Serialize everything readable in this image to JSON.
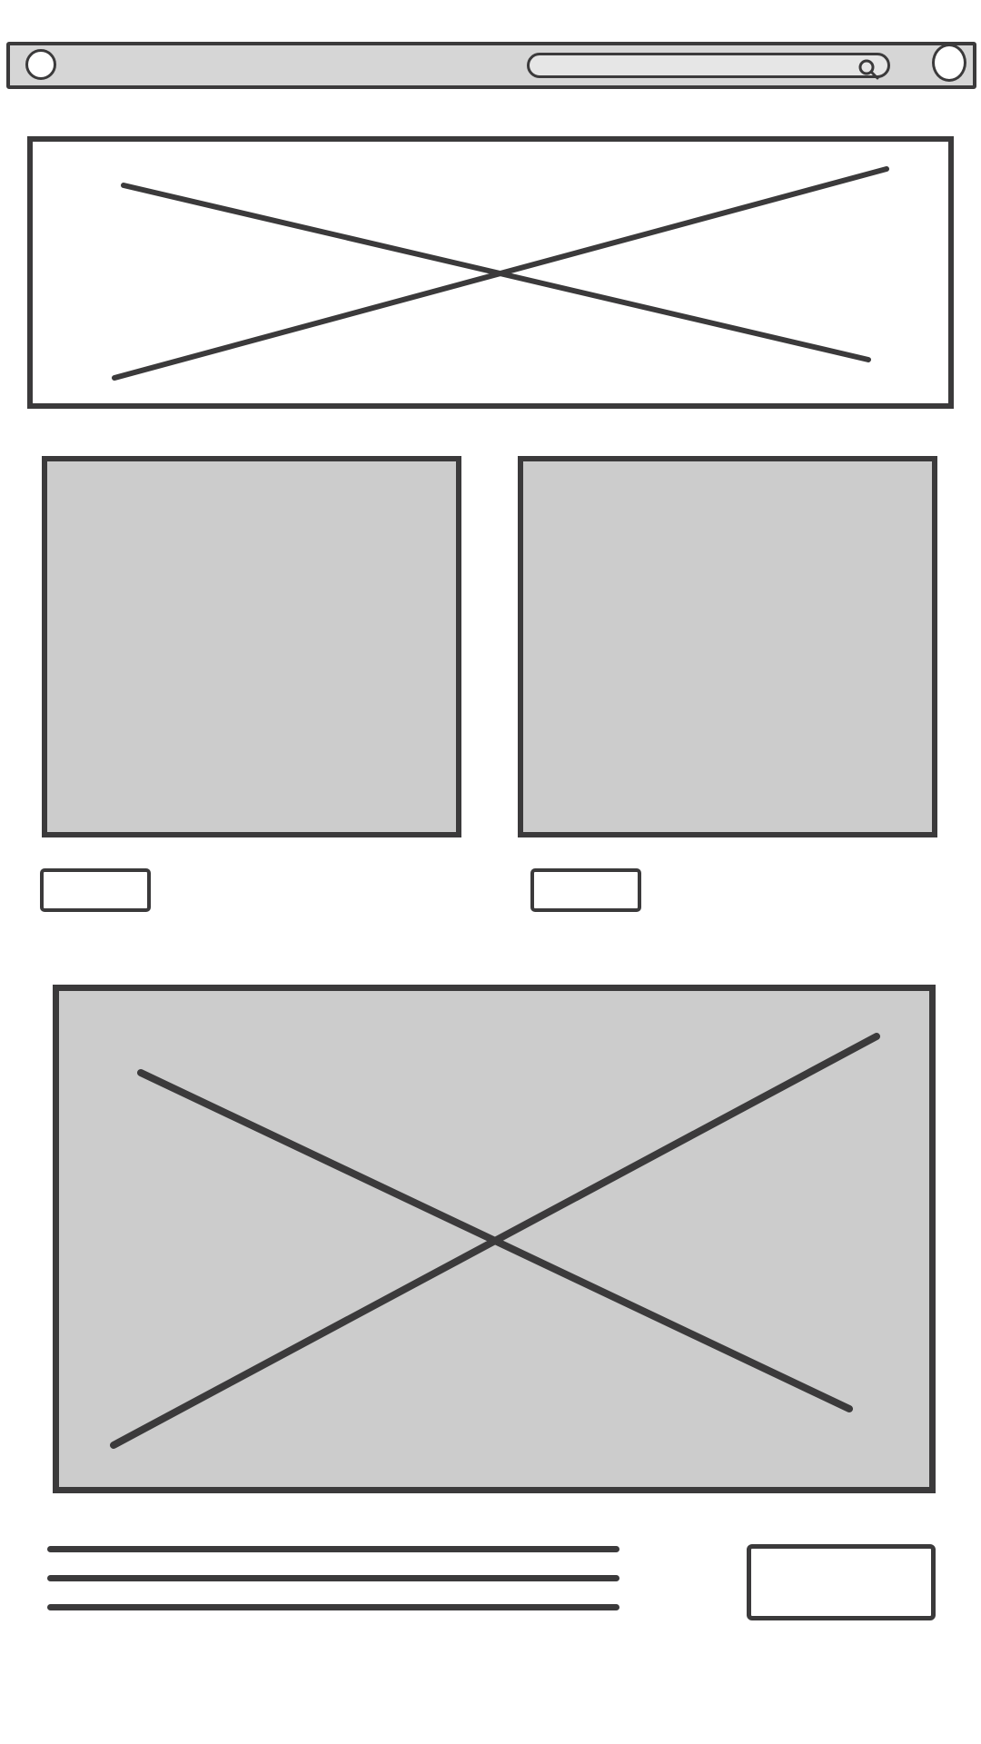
{
  "wireframe": {
    "colors": {
      "stroke": "#3b3a3b",
      "placeholder_fill": "#cccccc",
      "bar_fill": "#d6d6d6",
      "background": "#ffffff"
    },
    "topbar": {
      "icons": [
        "circle-icon",
        "search-icon",
        "circle-icon"
      ]
    },
    "sections": [
      "hero-image-placeholder",
      "card-left",
      "card-right",
      "feature-image-placeholder",
      "text-block",
      "action-button"
    ]
  }
}
